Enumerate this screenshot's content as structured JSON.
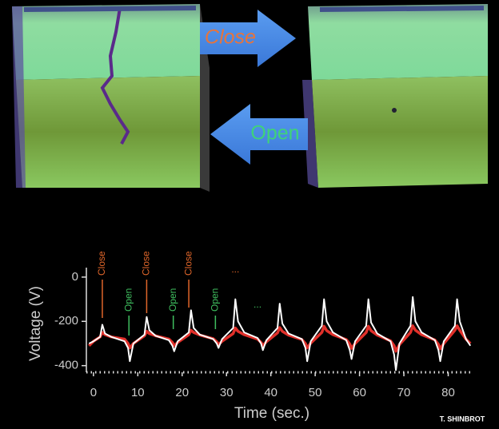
{
  "arrows": [
    {
      "label": "Close",
      "color": "#e8743a"
    },
    {
      "label": "Open",
      "color": "#3fd27a"
    }
  ],
  "credit": "T. SHINBROT",
  "chart_data": {
    "type": "line",
    "xlabel": "Time (sec.)",
    "ylabel": "Voltage (V)",
    "xlim": [
      -1.6,
      85.5
    ],
    "xticks": [
      0,
      10,
      20,
      30,
      40,
      50,
      60,
      70,
      80
    ],
    "ylim": [
      -430,
      50
    ],
    "yticks": [
      0,
      -200,
      -400
    ],
    "x": [
      -1,
      0,
      1.5,
      2,
      2.6,
      4,
      7,
      7.8,
      8.2,
      9,
      11.5,
      12,
      12.6,
      14,
      17,
      17.8,
      18.2,
      19,
      21.5,
      22,
      22.6,
      24,
      27,
      27.8,
      28.2,
      29,
      31.5,
      32,
      32.6,
      34,
      37,
      37.8,
      38.2,
      39,
      41.5,
      42,
      42.6,
      44,
      47,
      47.8,
      48.2,
      49,
      51.5,
      52,
      52.6,
      54,
      57,
      57.8,
      58.2,
      59,
      61.5,
      62,
      62.6,
      64,
      67,
      67.8,
      68.2,
      69,
      71.5,
      72,
      72.6,
      74,
      77,
      77.8,
      78.2,
      79,
      81.5,
      82,
      82.6,
      84,
      85
    ],
    "series": [
      {
        "color": "#e0302a",
        "values": [
          -310,
          -290,
          -270,
          -250,
          -260,
          -270,
          -280,
          -300,
          -320,
          -300,
          -265,
          -245,
          -255,
          -265,
          -280,
          -295,
          -310,
          -295,
          -260,
          -240,
          -250,
          -262,
          -278,
          -292,
          -305,
          -290,
          -255,
          -230,
          -245,
          -260,
          -280,
          -295,
          -310,
          -292,
          -252,
          -228,
          -245,
          -262,
          -282,
          -300,
          -320,
          -298,
          -250,
          -222,
          -242,
          -260,
          -282,
          -302,
          -322,
          -300,
          -250,
          -222,
          -242,
          -262,
          -288,
          -310,
          -335,
          -305,
          -250,
          -220,
          -240,
          -260,
          -284,
          -304,
          -324,
          -300,
          -240,
          -220,
          -240,
          -280,
          -300
        ]
      },
      {
        "color": "#ffffff",
        "values": [
          -300,
          -290,
          -270,
          -215,
          -255,
          -270,
          -290,
          -320,
          -380,
          -300,
          -260,
          -180,
          -240,
          -265,
          -285,
          -310,
          -335,
          -290,
          -250,
          -150,
          -230,
          -260,
          -280,
          -300,
          -320,
          -280,
          -230,
          -100,
          -200,
          -250,
          -275,
          -300,
          -330,
          -285,
          -230,
          -120,
          -210,
          -255,
          -280,
          -320,
          -380,
          -290,
          -220,
          -100,
          -200,
          -250,
          -285,
          -330,
          -370,
          -290,
          -220,
          -100,
          -205,
          -255,
          -290,
          -350,
          -420,
          -300,
          -220,
          -90,
          -200,
          -250,
          -285,
          -330,
          -380,
          -290,
          -220,
          -100,
          -200,
          -280,
          -310
        ]
      }
    ],
    "annotations": [
      {
        "text": "Close",
        "x": 2,
        "color": "#e0662a"
      },
      {
        "text": "Open",
        "x": 8,
        "color": "#3fbf5f"
      },
      {
        "text": "Close",
        "x": 12,
        "color": "#e0662a"
      },
      {
        "text": "Open",
        "x": 18,
        "color": "#3fbf5f"
      },
      {
        "text": "Close",
        "x": 21.5,
        "color": "#e0662a"
      },
      {
        "text": "Open",
        "x": 27.5,
        "color": "#3fbf5f"
      },
      {
        "text": "...",
        "x": 32,
        "color": "#e0662a"
      },
      {
        "text": "...",
        "x": 37,
        "color": "#3fbf5f"
      }
    ]
  }
}
